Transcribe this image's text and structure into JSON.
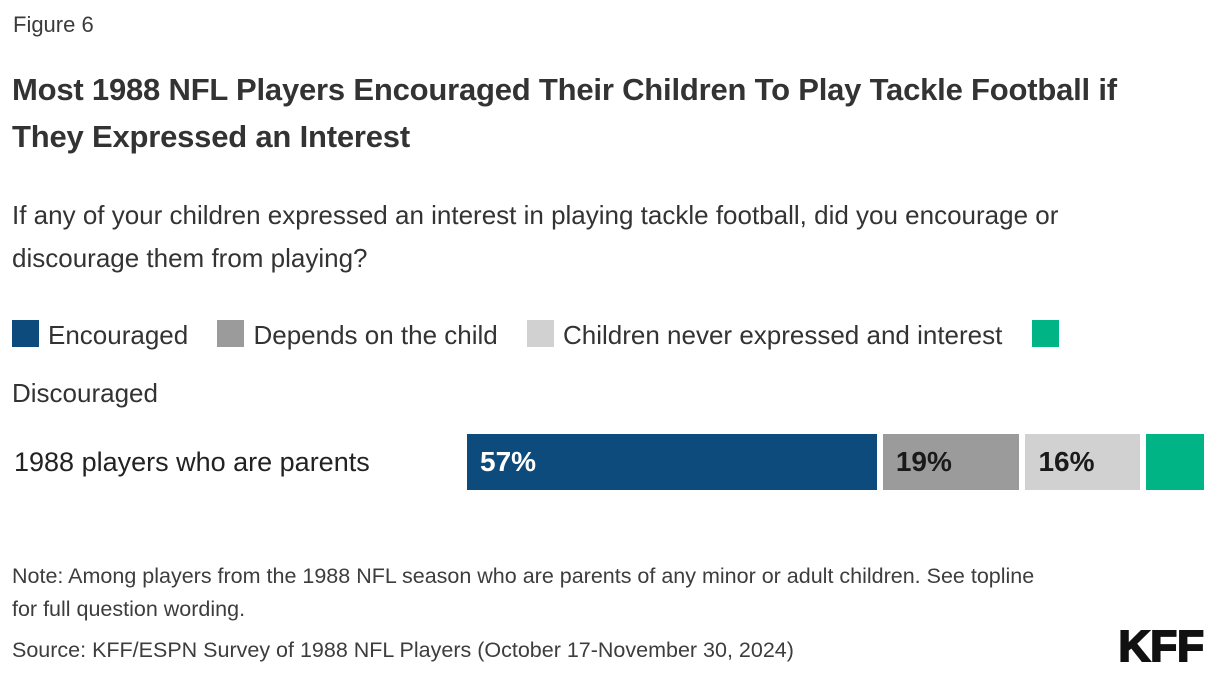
{
  "figure_label": "Figure 6",
  "title": "Most 1988 NFL Players Encouraged Their Children To Play Tackle Football if They Expressed an Interest",
  "subtitle": "If any of your children expressed an interest in playing tackle football, did you encourage or discourage them from playing?",
  "note": "Note: Among players from the 1988 NFL season who are parents of any minor or adult children. See topline for full question wording.",
  "source": "Source: KFF/ESPN Survey of 1988 NFL Players (October 17-November 30, 2024)",
  "logo": "KFF",
  "colors": {
    "encouraged_blue": "#0d4b7d",
    "depends_gray": "#9b9b9b",
    "never_expressed_light_gray": "#d1d1d1",
    "discouraged_green": "#00b485",
    "bar_label_on_blue": "#ffffff",
    "bar_label_on_gray": "#1a1a1a"
  },
  "chart_data": {
    "type": "bar",
    "orientation": "horizontal-stacked",
    "categories": [
      "1988 players who are parents"
    ],
    "series": [
      {
        "name": "Encouraged",
        "values": [
          57
        ],
        "color": "#0d4b7d",
        "bar_label": "57%",
        "label_color": "#ffffff"
      },
      {
        "name": "Depends on the child",
        "values": [
          19
        ],
        "color": "#9b9b9b",
        "bar_label": "19%",
        "label_color": "#1a1a1a"
      },
      {
        "name": "Children never expressed and interest",
        "values": [
          16
        ],
        "color": "#d1d1d1",
        "bar_label": "16%",
        "label_color": "#1a1a1a"
      },
      {
        "name": "Discouraged",
        "values": [
          8
        ],
        "color": "#00b485",
        "bar_label": "",
        "label_color": "#1a1a1a"
      }
    ],
    "xlim": [
      0,
      100
    ],
    "value_unit": "%",
    "legend_position": "top",
    "grid": false
  }
}
